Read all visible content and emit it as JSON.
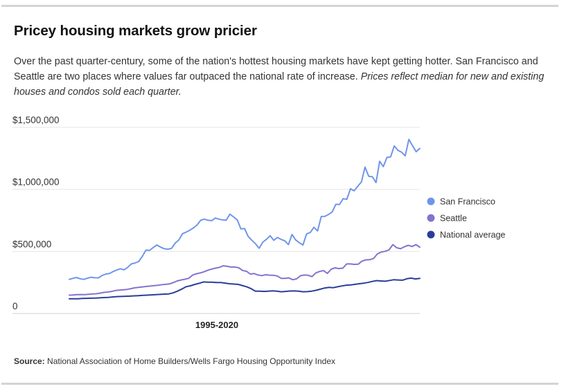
{
  "header": {
    "title": "Pricey housing markets grow pricier",
    "description": "Over the past quarter-century, some of the nation's hottest housing markets have kept getting hotter. San Francisco and Seattle are two places where values far outpaced the national rate of increase.",
    "description_note": "Prices reflect median for new and existing houses and condos sold each quarter."
  },
  "footer": {
    "source_label": "Source:",
    "source_text": "National Association of Home Builders/Wells Fargo Housing Opportunity Index"
  },
  "chart_data": {
    "type": "line",
    "title": "Pricey housing markets grow pricier",
    "xlabel": "1995-2020",
    "ylabel": "",
    "ylim": [
      0,
      1500000
    ],
    "yticks": [
      0,
      500000,
      1000000,
      1500000
    ],
    "ytick_labels": [
      "0",
      "$500,000",
      "$1,000,000",
      "$1,500,000"
    ],
    "grid": true,
    "legend_position": "right",
    "x_note": "quarterly, 1995-2020",
    "series": [
      {
        "name": "San Francisco",
        "color": "#6f95ea",
        "values": [
          275000,
          283000,
          290000,
          280000,
          275000,
          285000,
          292000,
          288000,
          287000,
          306000,
          318000,
          322000,
          338000,
          350000,
          361000,
          352000,
          372000,
          399000,
          407000,
          418000,
          460000,
          511000,
          508000,
          532000,
          552000,
          535000,
          522000,
          518000,
          525000,
          567000,
          592000,
          643000,
          656000,
          671000,
          689000,
          714000,
          752000,
          760000,
          751000,
          748000,
          769000,
          760000,
          754000,
          752000,
          801000,
          778000,
          754000,
          682000,
          684000,
          620000,
          590000,
          562000,
          526000,
          575000,
          598000,
          627000,
          590000,
          613000,
          597000,
          586000,
          555000,
          637000,
          593000,
          570000,
          552000,
          642000,
          653000,
          695000,
          665000,
          781000,
          783000,
          798000,
          818000,
          880000,
          878000,
          925000,
          920000,
          1005000,
          988000,
          1025000,
          1060000,
          1180000,
          1105000,
          1102000,
          1055000,
          1226000,
          1183000,
          1258000,
          1262000,
          1350000,
          1315000,
          1300000,
          1270000,
          1403000,
          1351000,
          1303000,
          1330000
        ]
      },
      {
        "name": "Seattle",
        "color": "#8572cf",
        "values": [
          148000,
          149000,
          152000,
          153000,
          152000,
          155000,
          157000,
          159000,
          164000,
          170000,
          173000,
          178000,
          185000,
          188000,
          191000,
          194000,
          200000,
          207000,
          210000,
          214000,
          218000,
          221000,
          224000,
          227000,
          232000,
          235000,
          238000,
          249000,
          262000,
          270000,
          276000,
          283000,
          309000,
          320000,
          327000,
          336000,
          349000,
          358000,
          366000,
          372000,
          385000,
          380000,
          374000,
          375000,
          368000,
          347000,
          340000,
          318000,
          322000,
          310000,
          305000,
          312000,
          309000,
          308000,
          302000,
          283000,
          283000,
          287000,
          272000,
          279000,
          304000,
          310000,
          308000,
          297000,
          327000,
          339000,
          346000,
          323000,
          357000,
          368000,
          362000,
          365000,
          399000,
          399000,
          396000,
          397000,
          422000,
          432000,
          433000,
          444000,
          480000,
          496000,
          501000,
          513000,
          555000,
          530000,
          522000,
          538000,
          549000,
          540000,
          555000,
          535000
        ]
      },
      {
        "name": "National average",
        "color": "#2a3d9a",
        "values": [
          118000,
          119000,
          119000,
          121000,
          122000,
          123000,
          124000,
          126000,
          128000,
          130000,
          133000,
          136000,
          137000,
          139000,
          140000,
          142000,
          144000,
          146000,
          148000,
          150000,
          152000,
          154000,
          156000,
          158000,
          166000,
          180000,
          197000,
          216000,
          223000,
          234000,
          243000,
          254000,
          252000,
          252000,
          250000,
          250000,
          245000,
          240000,
          237000,
          235000,
          225000,
          215000,
          200000,
          180000,
          180000,
          178000,
          180000,
          183000,
          180000,
          175000,
          178000,
          181000,
          182000,
          180000,
          175000,
          176000,
          180000,
          187000,
          196000,
          205000,
          210000,
          208000,
          215000,
          222000,
          228000,
          230000,
          235000,
          240000,
          244000,
          250000,
          258000,
          265000,
          262000,
          260000,
          266000,
          272000,
          270000,
          268000,
          280000,
          285000,
          278000,
          283000
        ]
      }
    ]
  }
}
